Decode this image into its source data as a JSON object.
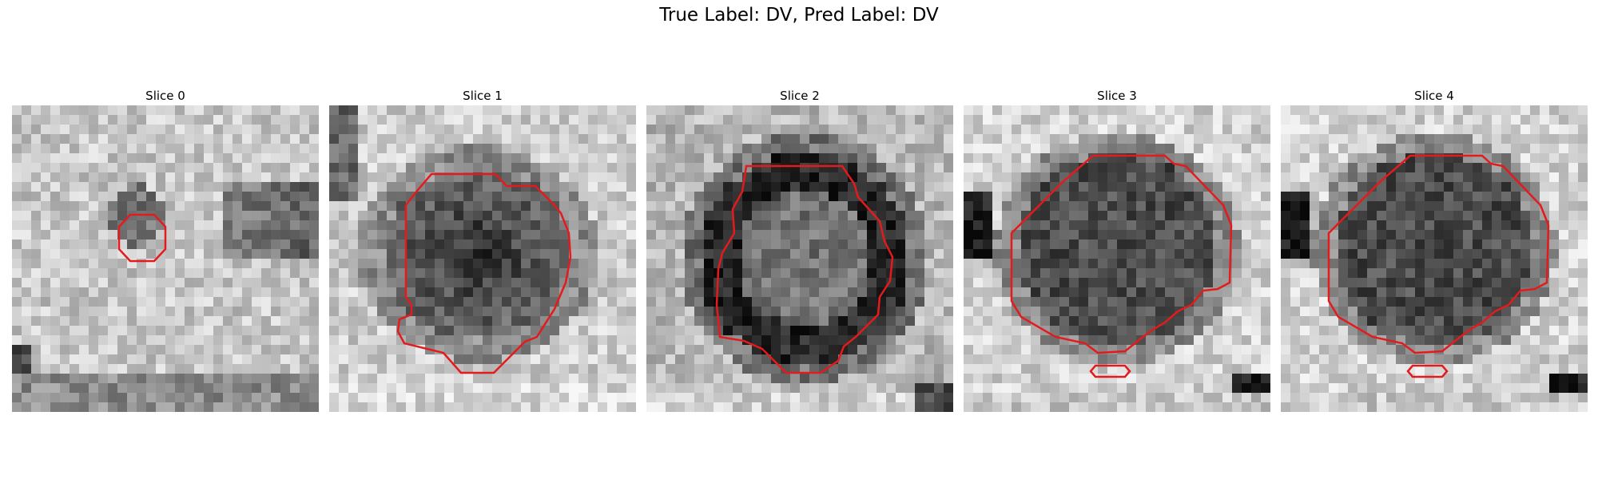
{
  "figure": {
    "title": "True Label: DV, Pred Label: DV",
    "contour_color": "#e41a1c"
  },
  "slices": [
    {
      "title": "Slice 0",
      "pattern": "diffuse"
    },
    {
      "title": "Slice 1",
      "pattern": "dark-lesion"
    },
    {
      "title": "Slice 2",
      "pattern": "ring"
    },
    {
      "title": "Slice 3",
      "pattern": "large-dark"
    },
    {
      "title": "Slice 4",
      "pattern": "large-dark"
    }
  ]
}
